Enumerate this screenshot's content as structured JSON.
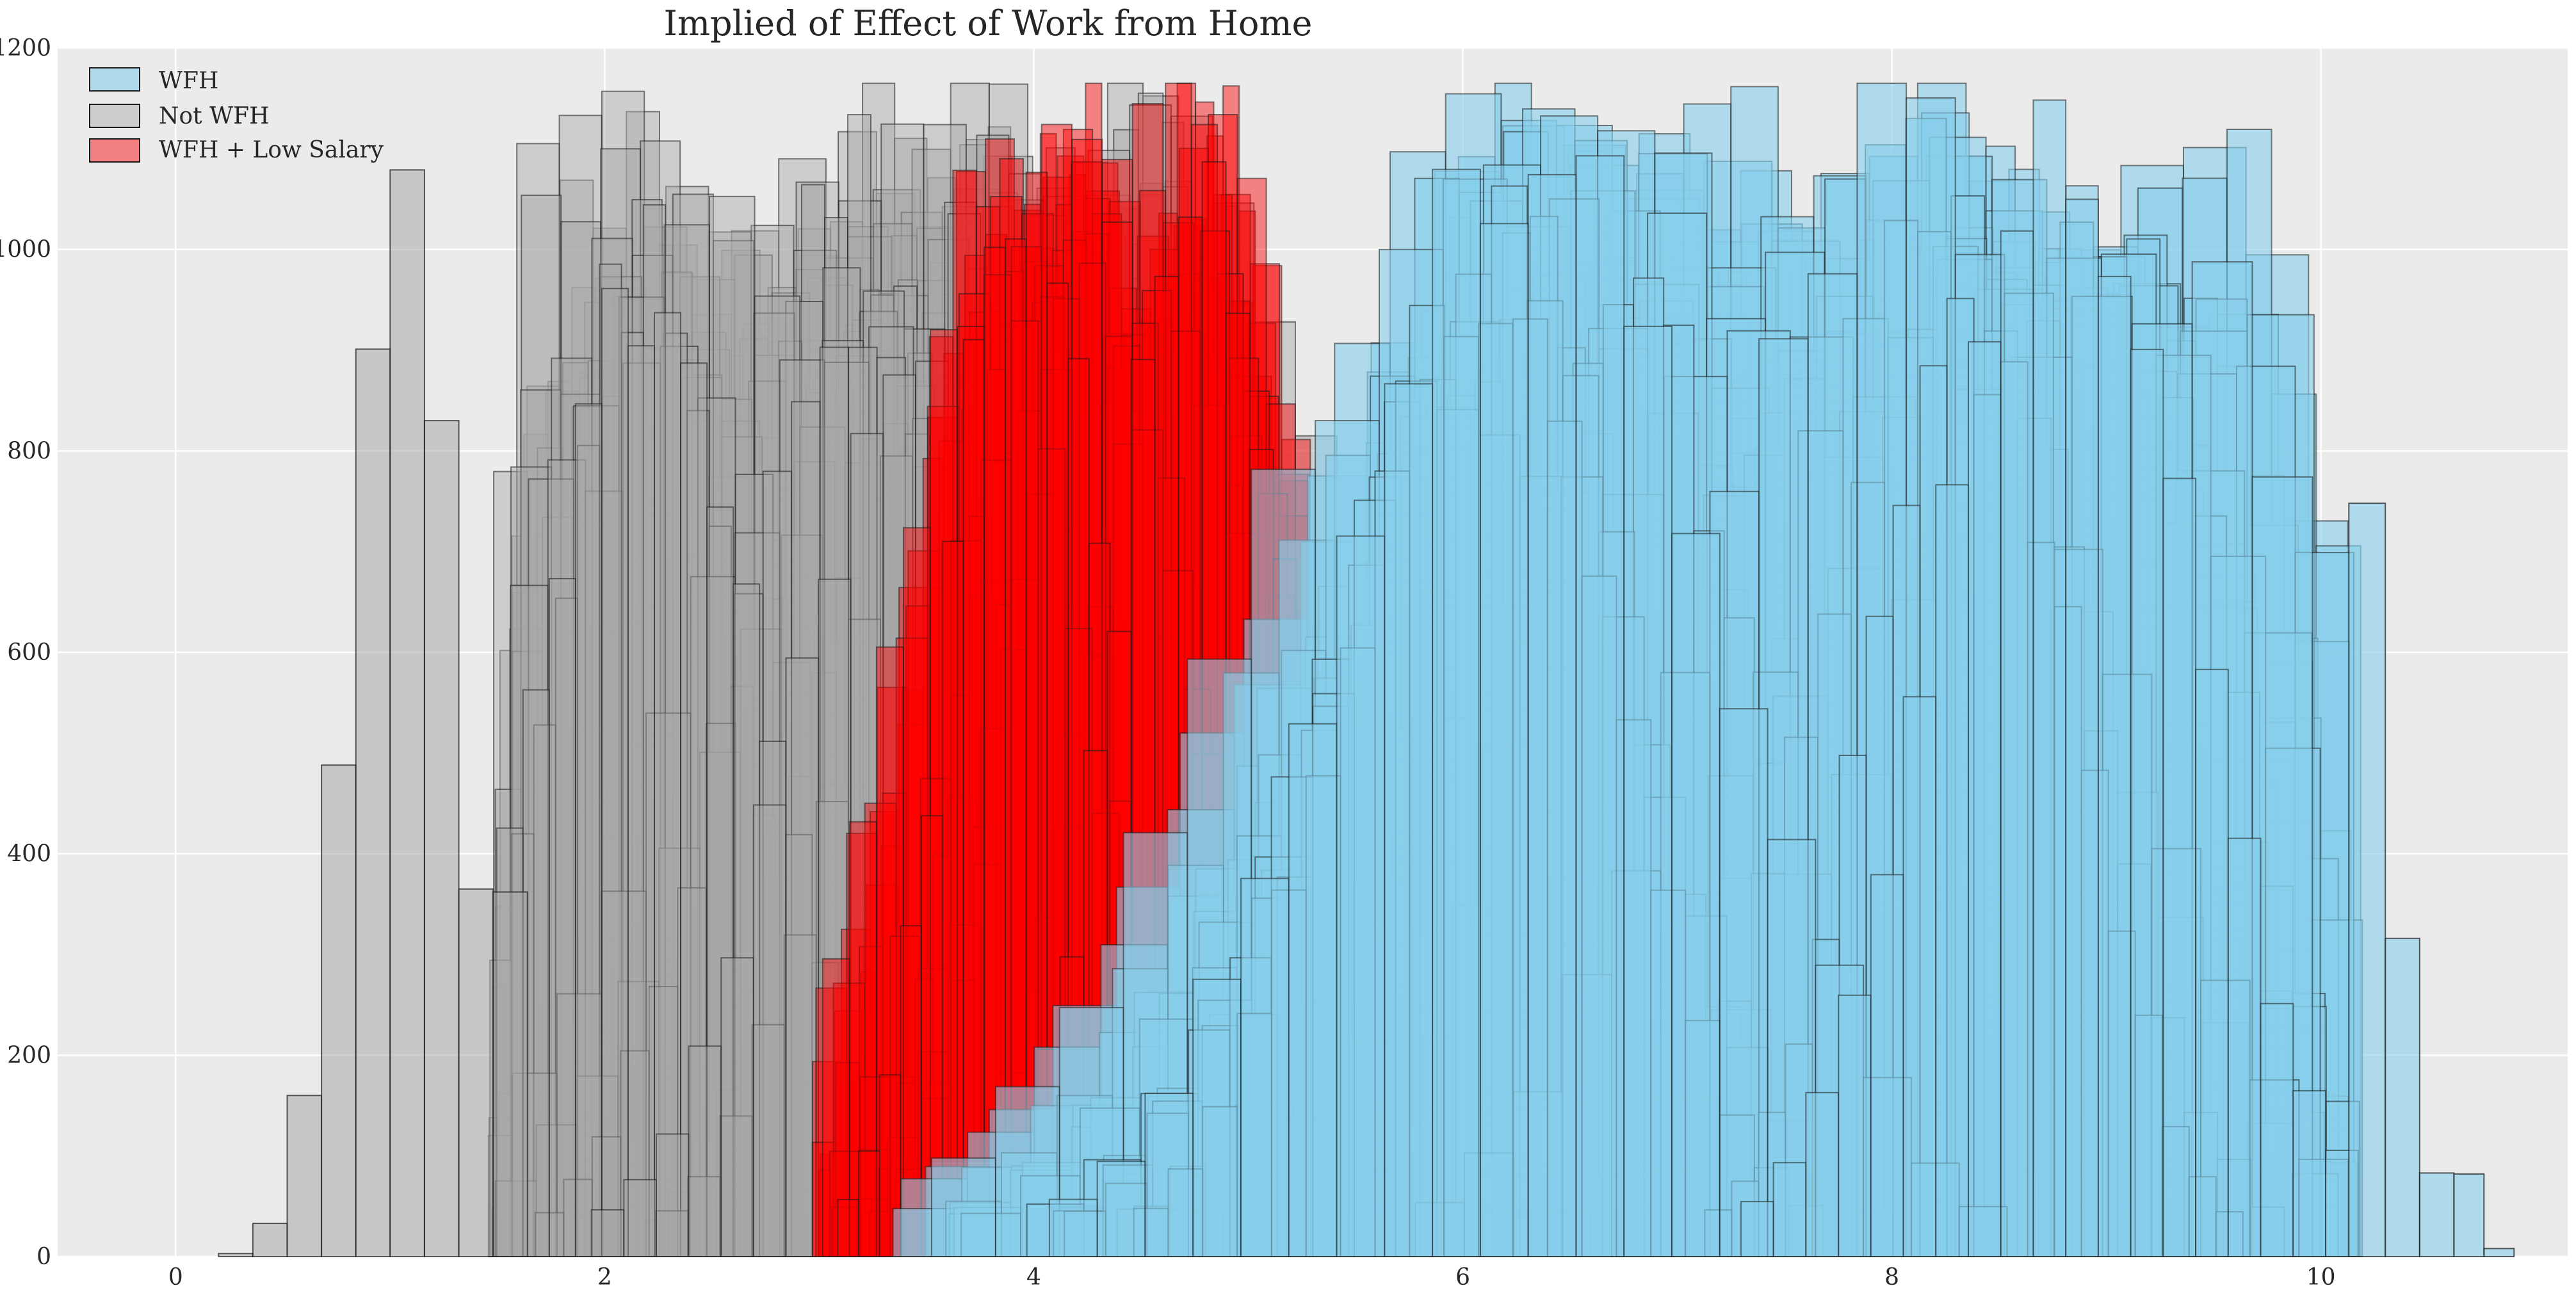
{
  "chart_data": {
    "type": "bar",
    "title": "Implied of Effect of Work from Home",
    "xlabel": "",
    "ylabel": "",
    "xlim": [
      -0.55,
      11.15
    ],
    "ylim": [
      0,
      1200
    ],
    "x_ticks": [
      0,
      2,
      4,
      6,
      8,
      10
    ],
    "y_ticks": [
      0,
      200,
      400,
      600,
      800,
      1000,
      1200
    ],
    "grid": true,
    "legend_position": "top-left",
    "series": [
      {
        "name": "WFH",
        "color": "#87ceeb",
        "edge_color": "#1a1a1a",
        "opacity": 0.6,
        "approx_range": [
          3.3,
          10.9
        ],
        "note_peak_region": [
          5.5,
          10.3
        ],
        "approx_max_count": 1145
      },
      {
        "name": "Not WFH",
        "color": "#a9a9a9",
        "edge_color": "#1a1a1a",
        "opacity": 0.45,
        "approx_range": [
          0.2,
          5.7
        ],
        "note_peak_region": [
          1.7,
          5.0
        ],
        "approx_max_count": 1165
      },
      {
        "name": "WFH + Low Salary",
        "color": "#ff0000",
        "edge_color": "#1a1a1a",
        "opacity": 0.45,
        "approx_range": [
          3.0,
          5.8
        ],
        "note_peak_region": [
          3.5,
          5.3
        ],
        "approx_max_count": 1160
      }
    ],
    "notable_bars": {
      "Not WFH_low_tail": [
        {
          "x0": 0.2,
          "x1": 0.36,
          "v": 3
        },
        {
          "x0": 0.36,
          "x1": 0.52,
          "v": 33
        },
        {
          "x0": 0.52,
          "x1": 0.68,
          "v": 160
        },
        {
          "x0": 0.68,
          "x1": 0.84,
          "v": 488
        },
        {
          "x0": 0.84,
          "x1": 1.0,
          "v": 901
        },
        {
          "x0": 1.0,
          "x1": 1.16,
          "v": 1079
        },
        {
          "x0": 1.16,
          "x1": 1.32,
          "v": 830
        },
        {
          "x0": 1.32,
          "x1": 1.48,
          "v": 365
        },
        {
          "x0": 1.48,
          "x1": 1.64,
          "v": 362
        }
      ],
      "WFH_high_tail": [
        {
          "x0": 10.13,
          "x1": 10.3,
          "v": 748
        },
        {
          "x0": 10.3,
          "x1": 10.46,
          "v": 316
        },
        {
          "x0": 10.46,
          "x1": 10.62,
          "v": 83
        },
        {
          "x0": 10.62,
          "x1": 10.76,
          "v": 82
        },
        {
          "x0": 10.76,
          "x1": 10.9,
          "v": 8
        }
      ]
    }
  }
}
